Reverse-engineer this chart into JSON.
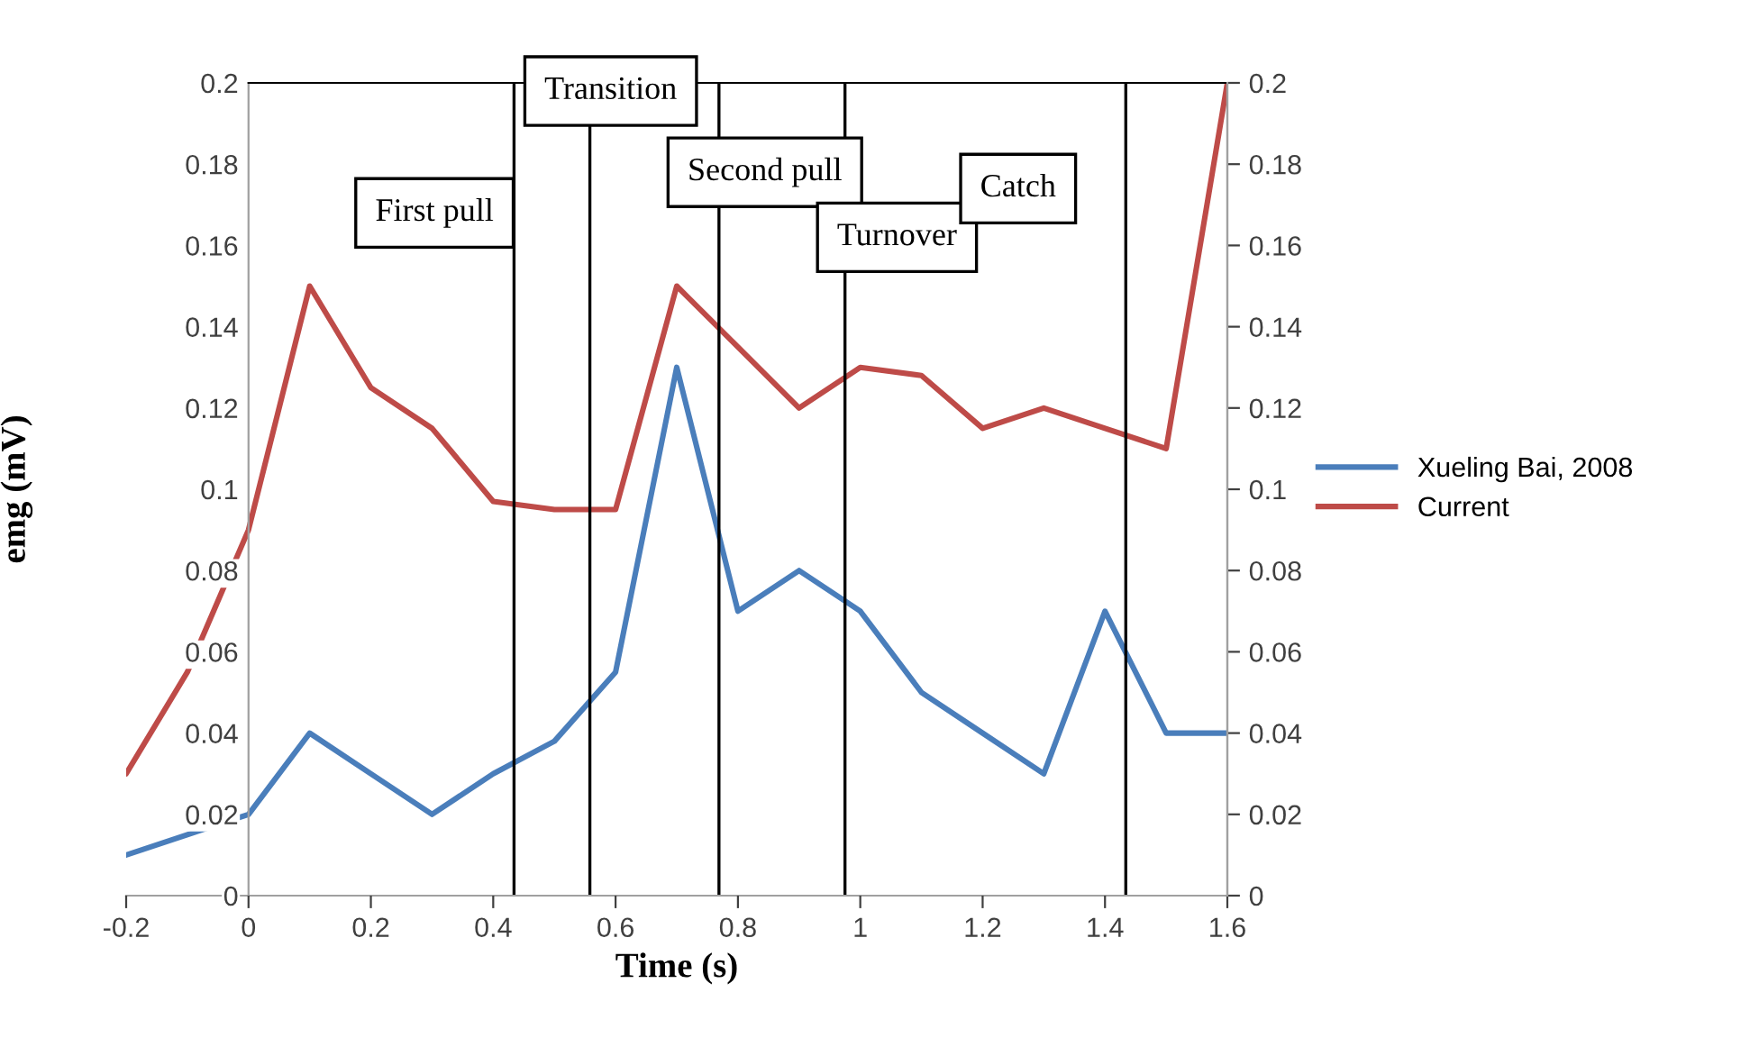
{
  "chart_data": {
    "type": "line",
    "xlabel": "Time (s)",
    "ylabel": "emg (mV)",
    "x": [
      -0.2,
      -0.1,
      0,
      0.1,
      0.2,
      0.3,
      0.4,
      0.5,
      0.6,
      0.7,
      0.8,
      0.9,
      1.0,
      1.1,
      1.2,
      1.3,
      1.4,
      1.5,
      1.6
    ],
    "series": [
      {
        "name": "Xueling Bai, 2008",
        "color": "#4a7ebb",
        "values": [
          0.01,
          0.015,
          0.02,
          0.04,
          0.03,
          0.02,
          0.03,
          0.038,
          0.055,
          0.13,
          0.07,
          0.08,
          0.07,
          0.05,
          0.04,
          0.03,
          0.07,
          0.04,
          0.04
        ]
      },
      {
        "name": "Current",
        "color": "#be4b48",
        "values": [
          0.03,
          0.055,
          0.09,
          0.15,
          0.125,
          0.115,
          0.097,
          0.095,
          0.095,
          0.15,
          0.135,
          0.12,
          0.13,
          0.128,
          0.115,
          0.12,
          0.115,
          0.11,
          0.2
        ]
      }
    ],
    "xlim": [
      -0.2,
      1.6
    ],
    "xticks": [
      -0.2,
      0,
      0.2,
      0.4,
      0.6,
      0.8,
      1,
      1.2,
      1.4,
      1.6
    ],
    "ylim": [
      0,
      0.2
    ],
    "yticks": [
      0,
      0.02,
      0.04,
      0.06,
      0.08,
      0.1,
      0.12,
      0.14,
      0.16,
      0.18,
      0.2
    ],
    "y2lim": [
      0,
      0.2
    ],
    "y2ticks": [
      0,
      0.02,
      0.04,
      0.06,
      0.08,
      0.1,
      0.12,
      0.14,
      0.16,
      0.18,
      0.2
    ],
    "ref_lines": [
      {
        "axis": "x",
        "value": 0.434,
        "color": "#000000"
      },
      {
        "axis": "x",
        "value": 0.558,
        "color": "#000000"
      },
      {
        "axis": "x",
        "value": 0.769,
        "color": "#000000"
      },
      {
        "axis": "x",
        "value": 0.975,
        "color": "#000000"
      },
      {
        "axis": "x",
        "value": 1.434,
        "color": "#000000"
      }
    ],
    "annotations": [
      "First pull",
      "Transition",
      "Second pull",
      "Turnover",
      "Catch"
    ],
    "legend": "right",
    "grid": false,
    "marker": "none",
    "line_style": "solid"
  }
}
